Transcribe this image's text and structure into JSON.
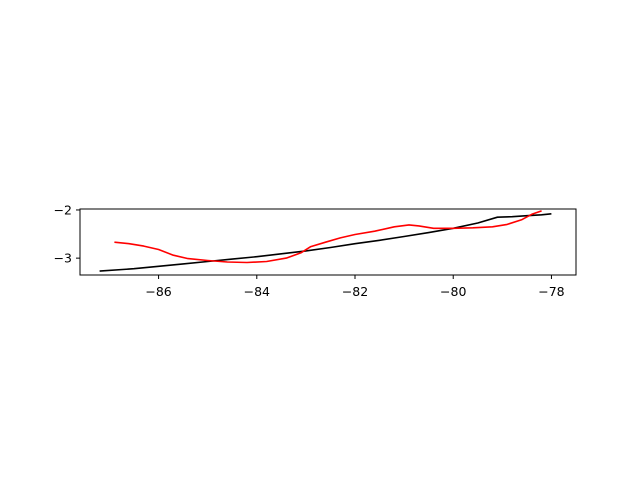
{
  "chart_data": {
    "type": "line",
    "title": "",
    "xlabel": "",
    "ylabel": "",
    "xlim": [
      -87.6,
      -77.5
    ],
    "ylim": [
      -3.35,
      -1.98
    ],
    "grid": false,
    "xticks": [
      -86,
      -84,
      -82,
      -80,
      -78
    ],
    "xtick_labels": [
      "−86",
      "−84",
      "−82",
      "−80",
      "−78"
    ],
    "yticks": [
      -3,
      -2
    ],
    "ytick_labels": [
      "−3",
      "−2"
    ],
    "series": [
      {
        "color": "#000000",
        "x": [
          -87.2,
          -86.5,
          -86.0,
          -85.5,
          -85.0,
          -84.5,
          -84.0,
          -83.5,
          -83.0,
          -82.5,
          -82.0,
          -81.5,
          -81.0,
          -80.5,
          -80.0,
          -79.5,
          -79.1,
          -78.8,
          -78.5,
          -78.2,
          -78.0
        ],
        "y": [
          -3.27,
          -3.22,
          -3.17,
          -3.12,
          -3.07,
          -3.02,
          -2.97,
          -2.91,
          -2.85,
          -2.78,
          -2.7,
          -2.63,
          -2.55,
          -2.47,
          -2.38,
          -2.27,
          -2.15,
          -2.14,
          -2.12,
          -2.1,
          -2.08
        ]
      },
      {
        "color": "#ff0000",
        "x": [
          -86.9,
          -86.6,
          -86.3,
          -86.0,
          -85.7,
          -85.4,
          -85.0,
          -84.6,
          -84.2,
          -83.8,
          -83.4,
          -83.1,
          -82.9,
          -82.6,
          -82.3,
          -82.0,
          -81.6,
          -81.2,
          -80.9,
          -80.7,
          -80.4,
          -80.0,
          -79.6,
          -79.2,
          -78.9,
          -78.6,
          -78.4,
          -78.2
        ],
        "y": [
          -2.67,
          -2.7,
          -2.75,
          -2.82,
          -2.94,
          -3.01,
          -3.05,
          -3.08,
          -3.09,
          -3.07,
          -3.0,
          -2.89,
          -2.76,
          -2.67,
          -2.58,
          -2.51,
          -2.44,
          -2.35,
          -2.31,
          -2.33,
          -2.38,
          -2.38,
          -2.37,
          -2.35,
          -2.3,
          -2.2,
          -2.09,
          -2.02
        ]
      }
    ]
  }
}
